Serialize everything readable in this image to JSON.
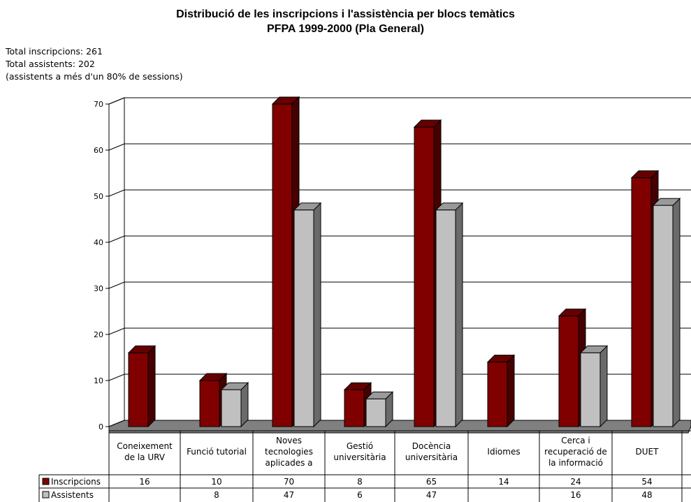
{
  "title_line1": "Distribució de les inscripcions i l'assistència per blocs temàtics",
  "title_line2": "PFPA 1999-2000 (Pla General)",
  "notes": [
    "Total inscripcions: 261",
    "Total assistents: 202",
    "(assistents a més d'un 80% de sessions)"
  ],
  "colors": {
    "inscripcions": "#800000",
    "assistents": "#c0c0c0"
  },
  "chart_data": {
    "type": "bar",
    "categories": [
      [
        "Coneixement",
        "de la URV"
      ],
      [
        "Funció tutorial"
      ],
      [
        "Noves",
        "tecnologies",
        "aplicades a"
      ],
      [
        "Gestió",
        "universitària"
      ],
      [
        "Docència",
        "universitària"
      ],
      [
        "Idiomes"
      ],
      [
        "Cerca i",
        "recuperació de",
        "la informació"
      ],
      [
        "DUET"
      ]
    ],
    "series": [
      {
        "name": "Inscripcions",
        "values": [
          "16",
          "10",
          "70",
          "8",
          "65",
          "14",
          "24",
          "54"
        ]
      },
      {
        "name": "Assistents",
        "values": [
          "",
          "8",
          "47",
          "6",
          "47",
          "",
          "16",
          "48"
        ]
      }
    ],
    "yticks": [
      "0",
      "10",
      "20",
      "30",
      "40",
      "50",
      "60",
      "70"
    ],
    "ylim": [
      0,
      70
    ],
    "grid": true,
    "legend": "data table below chart"
  }
}
